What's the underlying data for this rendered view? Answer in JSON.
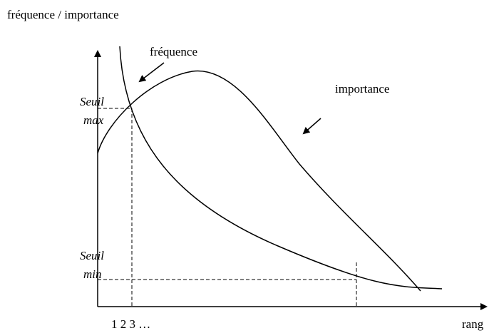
{
  "axis_title": "fréquence / importance",
  "curves": {
    "frequency": "fréquence",
    "importance": "importance"
  },
  "thresholds": {
    "max": {
      "line1": "Seuil",
      "line2": "max"
    },
    "min": {
      "line1": "Seuil",
      "line2": "min"
    }
  },
  "x_axis": {
    "ticks": "1 2 3 …",
    "label": "rang"
  }
}
